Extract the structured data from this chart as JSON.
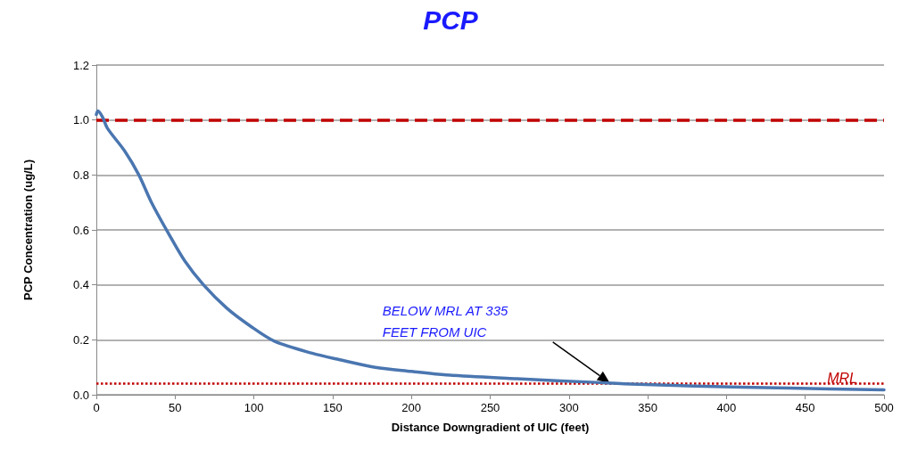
{
  "chart_data": {
    "type": "line",
    "title": "PCP",
    "xlabel": "Distance Downgradient of UIC (feet)",
    "ylabel": "PCP Concentration (ug/L)",
    "x": [
      0,
      1,
      4,
      7,
      18,
      27,
      35,
      46,
      56,
      68,
      83,
      98,
      113,
      137,
      154,
      177,
      200,
      222,
      267,
      317,
      335,
      380,
      440,
      500
    ],
    "series": [
      {
        "color": "#4a76b0",
        "values": [
          1.02,
          1.033,
          1.01,
          0.97,
          0.887,
          0.8,
          0.7,
          0.585,
          0.488,
          0.4,
          0.314,
          0.249,
          0.195,
          0.151,
          0.128,
          0.1,
          0.085,
          0.072,
          0.058,
          0.045,
          0.04,
          0.032,
          0.024,
          0.018
        ]
      }
    ],
    "xlim": [
      0,
      500
    ],
    "xticks": [
      0,
      50,
      100,
      150,
      200,
      250,
      300,
      350,
      400,
      450,
      500
    ],
    "ylim": [
      0,
      1.2
    ],
    "yticks": [
      {
        "value": 0,
        "label": "0.0"
      },
      {
        "value": 0.2,
        "label": "0.2"
      },
      {
        "value": 0.4,
        "label": "0.4"
      },
      {
        "value": 0.6,
        "label": "0.6"
      },
      {
        "value": 0.8,
        "label": "0.8"
      },
      {
        "value": 1,
        "label": "1.0"
      },
      {
        "value": 1.2,
        "label": "1.2"
      }
    ],
    "grid": "y",
    "marker": "none",
    "line_style": "solid",
    "ref_lines": [
      {
        "axis": "y",
        "value": 1,
        "label": null,
        "color": "#c00000",
        "line_style": "dashed"
      },
      {
        "axis": "y",
        "value": 0.04,
        "label": "MRL",
        "color": "#c00000",
        "line_style": "dotted"
      }
    ],
    "annotations": [
      "BELOW MRL AT 335\nFEET FROM UIC"
    ]
  }
}
